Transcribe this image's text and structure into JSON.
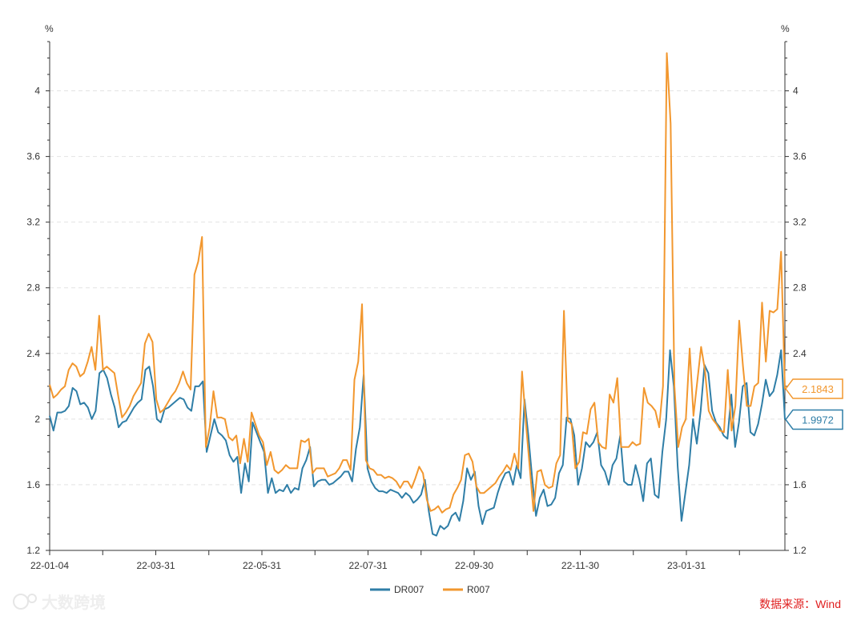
{
  "chart_data": {
    "type": "line",
    "y_unit_left": "%",
    "y_unit_right": "%",
    "ylim": [
      1.2,
      4.3
    ],
    "y_ticks": [
      "1.2",
      "1.6",
      "2",
      "2.4",
      "2.8",
      "3.2",
      "3.6",
      "4"
    ],
    "x_tick_labels": [
      "22-01-04",
      "22-03-31",
      "22-05-31",
      "22-07-31",
      "22-09-30",
      "22-11-30",
      "23-01-31"
    ],
    "grid": "horizontal dashed",
    "legend_position": "bottom-center",
    "series": [
      {
        "name": "DR007",
        "color": "#2f7ea7",
        "last_value": "1.9972",
        "values": [
          2.02,
          1.93,
          2.04,
          2.04,
          2.05,
          2.08,
          2.19,
          2.17,
          2.09,
          2.1,
          2.07,
          2.0,
          2.05,
          2.28,
          2.3,
          2.25,
          2.15,
          2.07,
          1.95,
          1.98,
          1.99,
          2.03,
          2.07,
          2.1,
          2.12,
          2.3,
          2.32,
          2.2,
          2.0,
          1.98,
          2.06,
          2.07,
          2.09,
          2.11,
          2.13,
          2.12,
          2.07,
          2.05,
          2.2,
          2.2,
          2.23,
          1.8,
          1.9,
          2.0,
          1.92,
          1.9,
          1.87,
          1.78,
          1.74,
          1.77,
          1.55,
          1.73,
          1.62,
          1.98,
          1.92,
          1.86,
          1.8,
          1.55,
          1.64,
          1.55,
          1.57,
          1.56,
          1.6,
          1.55,
          1.58,
          1.57,
          1.7,
          1.75,
          1.83,
          1.59,
          1.62,
          1.63,
          1.63,
          1.6,
          1.61,
          1.63,
          1.65,
          1.68,
          1.68,
          1.62,
          1.82,
          1.95,
          2.27,
          1.7,
          1.62,
          1.58,
          1.56,
          1.56,
          1.55,
          1.57,
          1.56,
          1.55,
          1.52,
          1.55,
          1.53,
          1.49,
          1.51,
          1.54,
          1.63,
          1.44,
          1.3,
          1.29,
          1.35,
          1.33,
          1.35,
          1.41,
          1.43,
          1.38,
          1.5,
          1.7,
          1.63,
          1.68,
          1.47,
          1.36,
          1.44,
          1.45,
          1.46,
          1.55,
          1.62,
          1.67,
          1.68,
          1.6,
          1.72,
          1.64,
          2.12,
          1.9,
          1.64,
          1.41,
          1.52,
          1.57,
          1.47,
          1.48,
          1.52,
          1.67,
          1.72,
          2.01,
          2.0,
          1.9,
          1.6,
          1.7,
          1.86,
          1.83,
          1.86,
          1.92,
          1.72,
          1.68,
          1.6,
          1.72,
          1.76,
          1.9,
          1.62,
          1.6,
          1.6,
          1.72,
          1.63,
          1.5,
          1.73,
          1.76,
          1.54,
          1.52,
          1.8,
          2.0,
          2.42,
          2.2,
          1.71,
          1.38,
          1.55,
          1.72,
          2.0,
          1.85,
          2.05,
          2.33,
          2.28,
          2.05,
          1.98,
          1.95,
          1.9,
          1.88,
          2.15,
          1.83,
          1.98,
          2.2,
          2.22,
          1.92,
          1.9,
          1.97,
          2.09,
          2.24,
          2.14,
          2.17,
          2.27,
          2.42,
          1.9972
        ]
      },
      {
        "name": "R007",
        "color": "#f2972e",
        "last_value": "2.1843",
        "values": [
          2.21,
          2.13,
          2.15,
          2.18,
          2.2,
          2.3,
          2.34,
          2.32,
          2.26,
          2.28,
          2.35,
          2.44,
          2.3,
          2.63,
          2.3,
          2.32,
          2.3,
          2.28,
          2.14,
          2.01,
          2.04,
          2.08,
          2.14,
          2.18,
          2.22,
          2.46,
          2.52,
          2.47,
          2.12,
          2.04,
          2.06,
          2.1,
          2.14,
          2.17,
          2.22,
          2.29,
          2.22,
          2.18,
          2.88,
          2.96,
          3.11,
          1.83,
          1.95,
          2.17,
          2.01,
          2.01,
          2.0,
          1.89,
          1.87,
          1.9,
          1.73,
          1.88,
          1.74,
          2.04,
          1.97,
          1.9,
          1.86,
          1.72,
          1.8,
          1.69,
          1.67,
          1.69,
          1.72,
          1.7,
          1.7,
          1.7,
          1.87,
          1.86,
          1.88,
          1.67,
          1.7,
          1.7,
          1.7,
          1.65,
          1.66,
          1.67,
          1.7,
          1.75,
          1.75,
          1.69,
          2.24,
          2.35,
          2.7,
          1.75,
          1.7,
          1.69,
          1.66,
          1.66,
          1.64,
          1.65,
          1.64,
          1.62,
          1.58,
          1.62,
          1.62,
          1.58,
          1.64,
          1.71,
          1.67,
          1.51,
          1.44,
          1.45,
          1.47,
          1.43,
          1.45,
          1.46,
          1.54,
          1.58,
          1.63,
          1.78,
          1.79,
          1.74,
          1.59,
          1.55,
          1.55,
          1.57,
          1.59,
          1.61,
          1.65,
          1.68,
          1.72,
          1.69,
          1.79,
          1.7,
          2.29,
          1.98,
          1.71,
          1.44,
          1.68,
          1.69,
          1.6,
          1.58,
          1.59,
          1.73,
          1.78,
          2.66,
          1.99,
          1.97,
          1.7,
          1.74,
          1.92,
          1.91,
          2.06,
          2.1,
          1.86,
          1.83,
          1.82,
          2.15,
          2.1,
          2.25,
          1.83,
          1.83,
          1.83,
          1.86,
          1.84,
          1.85,
          2.19,
          2.1,
          2.08,
          2.05,
          1.95,
          2.2,
          4.23,
          3.8,
          2.2,
          1.83,
          1.95,
          2.0,
          2.43,
          2.02,
          2.23,
          2.44,
          2.3,
          2.05,
          2.0,
          1.97,
          1.93,
          1.92,
          2.3,
          1.93,
          2.08,
          2.6,
          2.32,
          2.08,
          2.08,
          2.2,
          2.22,
          2.71,
          2.35,
          2.66,
          2.65,
          2.67,
          3.02,
          2.1843
        ]
      }
    ]
  },
  "source_label": "数据来源：Wind",
  "watermark_label": "大数跨境"
}
